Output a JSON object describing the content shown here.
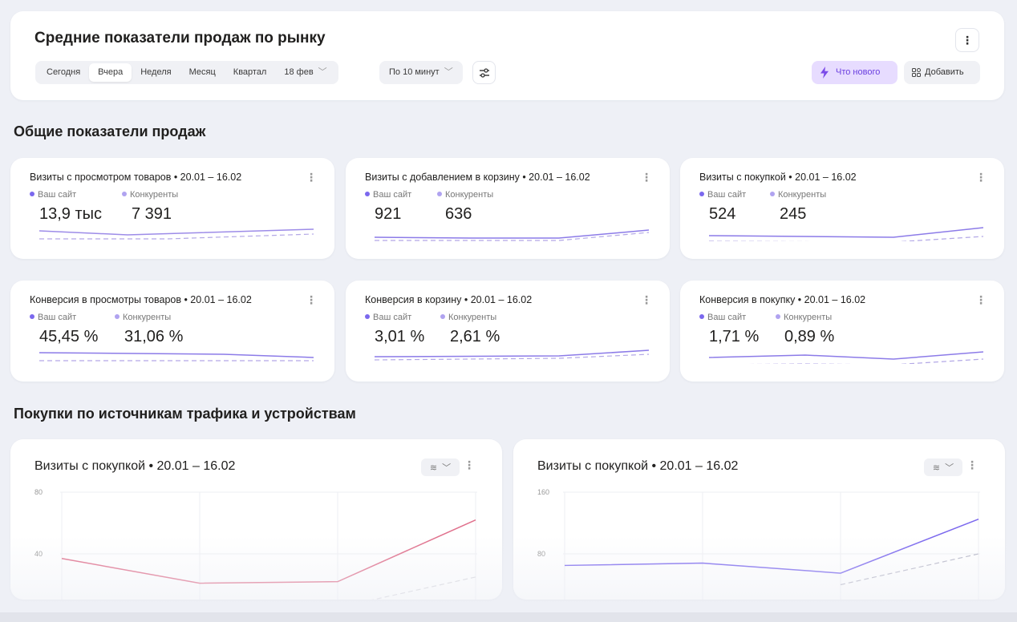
{
  "header": {
    "title": "Средние показатели продаж по рынку",
    "periods": [
      "Сегодня",
      "Вчера",
      "Неделя",
      "Месяц",
      "Квартал"
    ],
    "active_period": "Вчера",
    "date_label": "18 фев",
    "granularity": "По 10 минут",
    "whats_new": "Что нового",
    "add": "Добавить",
    "colors": {
      "accent": "#7b68ee",
      "accent_bg": "#e7dcff",
      "accent_text": "#6b3fe0"
    }
  },
  "sections": {
    "overall": "Общие показатели продаж",
    "traffic": "Покупки по источникам трафика и устройствам"
  },
  "legend": {
    "own": "Ваш сайт",
    "competitors": "Конкуренты"
  },
  "metrics": [
    {
      "title": "Визиты с просмотром товаров • 20.01 – 16.02",
      "own": "13,9 тыс",
      "competitors": "7 391"
    },
    {
      "title": "Визиты с добавлением в корзину • 20.01 – 16.02",
      "own": "921",
      "competitors": "636"
    },
    {
      "title": "Визиты с покупкой • 20.01 – 16.02",
      "own": "524",
      "competitors": "245"
    },
    {
      "title": "Конверсия в просмотры товаров • 20.01 – 16.02",
      "own": "45,45 %",
      "competitors": "31,06 %"
    },
    {
      "title": "Конверсия в корзину • 20.01 – 16.02",
      "own": "3,01 %",
      "competitors": "2,61 %"
    },
    {
      "title": "Конверсия в покупку • 20.01 – 16.02",
      "own": "1,71 %",
      "competitors": "0,89 %"
    }
  ],
  "chart_data": [
    {
      "type": "line",
      "title": "Визиты с покупкой • 20.01 – 16.02",
      "ytick_labels": [
        "80",
        "40"
      ],
      "ylim": [
        0,
        80
      ],
      "x": [
        0,
        1,
        2,
        3
      ],
      "series": [
        {
          "name": "Ваш сайт",
          "values": [
            37,
            21,
            22,
            62
          ],
          "color": "#e0708c"
        },
        {
          "name": "Конкуренты",
          "values": [
            null,
            null,
            null,
            25
          ],
          "color": "#d8d8de"
        }
      ]
    },
    {
      "type": "line",
      "title": "Визиты с покупкой • 20.01 – 16.02",
      "ytick_labels": [
        "160",
        "80"
      ],
      "ylim": [
        0,
        160
      ],
      "x": [
        0,
        1,
        2,
        3
      ],
      "series": [
        {
          "name": "Ваш сайт",
          "values": [
            65,
            68,
            55,
            125
          ],
          "color": "#7b68ee"
        },
        {
          "name": "Конкуренты",
          "values": [
            null,
            null,
            40,
            80
          ],
          "color": "#b8b8c8"
        }
      ]
    }
  ]
}
